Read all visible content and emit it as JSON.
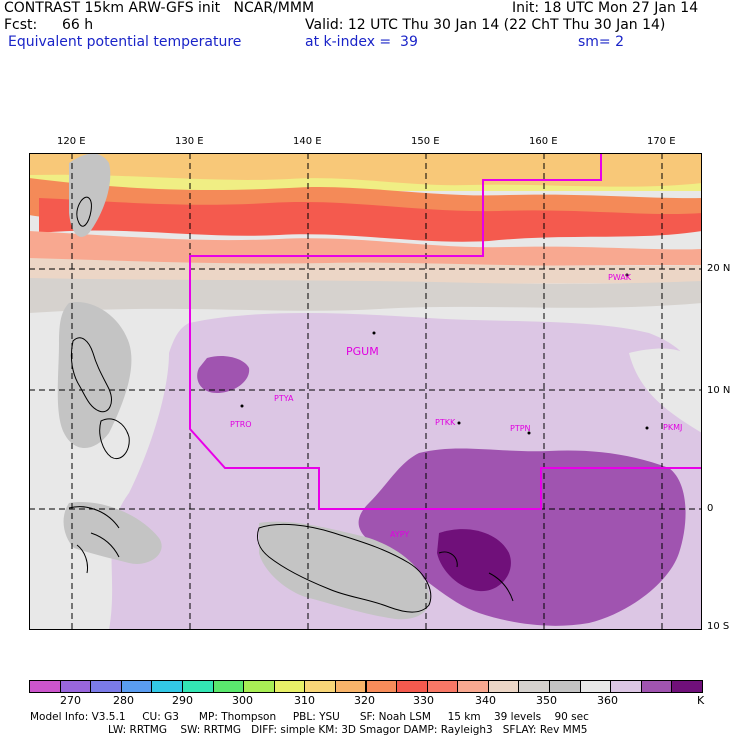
{
  "header": {
    "line1_left": "CONTRAST 15km ARW-GFS init   NCAR/MMM",
    "line1_right": "Init: 18 UTC Mon 27 Jan 14",
    "fcst_label": "Fcst:",
    "fcst_value": "66 h",
    "valid": "Valid: 12 UTC Thu 30 Jan 14 (22 ChT Thu 30 Jan 14)",
    "field": "Equivalent potential temperature",
    "level": "at k-index =  39",
    "smooth": "sm= 2"
  },
  "axes": {
    "lon_labels": [
      "120 E",
      "130 E",
      "140 E",
      "150 E",
      "160 E",
      "170 E"
    ],
    "lat_labels": [
      "20 N",
      "10 N",
      "0",
      "10 S"
    ]
  },
  "stations": [
    "PGUM",
    "PTYA",
    "PTRO",
    "PTKK",
    "PTPN",
    "PKMJ",
    "PWAK",
    "AYPY"
  ],
  "colorbar": {
    "colors": [
      "#cc55cc",
      "#9966dd",
      "#7b7be8",
      "#5a9cf0",
      "#33c8e6",
      "#33e6b4",
      "#5ae86e",
      "#a8ee55",
      "#e8f068",
      "#f8d678",
      "#f8b46a",
      "#f78c5a",
      "#f45a4e",
      "#f87866",
      "#f8a890",
      "#ecd6c6",
      "#d6d2ce",
      "#c4c4c4",
      "#e8e8e8",
      "#dcc6e4",
      "#a054b0",
      "#70107a"
    ],
    "labels": [
      "270",
      "280",
      "290",
      "300",
      "310",
      "320",
      "330",
      "340",
      "350",
      "360"
    ],
    "unit": "K"
  },
  "footer": {
    "line1": "Model Info: V3.5.1     CU: G3      MP: Thompson     PBL: YSU      SF: Noah LSM     15 km    39 levels    90 sec",
    "line2": "LW: RRTMG    SW: RRTMG   DIFF: simple KM: 3D Smagor DAMP: Rayleigh3   SFLAY: Rev MM5"
  }
}
